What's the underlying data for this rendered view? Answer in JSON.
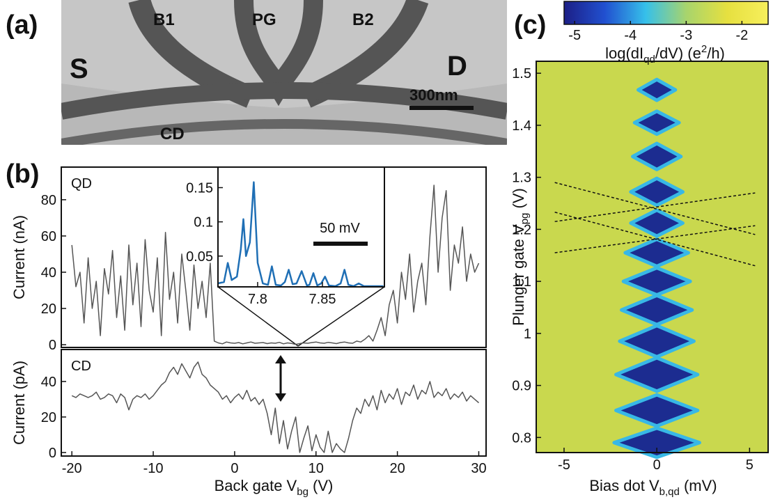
{
  "panel_a": {
    "label": "(a)",
    "source": "S",
    "drain": "D",
    "barrier_1": "B1",
    "plunger": "PG",
    "barrier_2": "B2",
    "charge_detector": "CD",
    "scale": "300nm"
  },
  "chart_data": [
    {
      "type": "line",
      "panel_label": "(b)",
      "annotation": "QD",
      "ylabel": [
        {
          "text": "Current (nA)"
        }
      ],
      "xlim": [
        -21.3,
        30.9
      ],
      "ylim": [
        -1.5,
        98
      ],
      "yticks": [
        0,
        20,
        40,
        60,
        80
      ],
      "x": [
        -20,
        -19.5,
        -19,
        -18.5,
        -18,
        -17.5,
        -17,
        -16.5,
        -16,
        -15.5,
        -15,
        -14.5,
        -14,
        -13.5,
        -13,
        -12.5,
        -12,
        -11.5,
        -11,
        -10.5,
        -10,
        -9.5,
        -9,
        -8.5,
        -8,
        -7.5,
        -7,
        -6.5,
        -6,
        -5.5,
        -5,
        -4.5,
        -4,
        -3.5,
        -3,
        -2.5,
        -2,
        -1.5,
        -1,
        -0.5,
        0,
        0.5,
        1,
        1.5,
        2,
        2.5,
        3,
        3.5,
        4,
        4.5,
        5,
        5.5,
        6,
        6.5,
        7,
        7.5,
        8,
        8.5,
        9,
        9.5,
        10,
        10.5,
        11,
        11.5,
        12,
        12.5,
        13,
        13.5,
        14,
        14.5,
        15,
        15.5,
        16,
        16.5,
        17,
        17.5,
        18,
        18.5,
        19,
        19.5,
        20,
        20.5,
        21,
        21.5,
        22,
        22.5,
        23,
        23.5,
        24,
        24.5,
        25,
        25.5,
        26,
        26.5,
        27,
        27.5,
        28,
        28.5,
        29,
        29.5,
        30
      ],
      "series": [
        {
          "color": "#555555",
          "values": [
            55,
            32,
            40,
            12,
            48,
            20,
            35,
            5,
            42,
            28,
            52,
            15,
            38,
            8,
            55,
            22,
            45,
            10,
            58,
            30,
            18,
            48,
            5,
            62,
            25,
            40,
            12,
            50,
            30,
            8,
            44,
            20,
            35,
            15,
            45,
            2,
            1,
            0.5,
            1.5,
            1,
            0.8,
            1.2,
            0.5,
            1,
            1.5,
            0.8,
            1,
            1.2,
            0.6,
            1,
            0.8,
            1.3,
            0.5,
            1,
            0.7,
            0.2,
            0.6,
            1,
            0.8,
            1.2,
            1.5,
            1,
            0.8,
            1.3,
            1,
            0.6,
            1.2,
            1.5,
            1,
            0.8,
            2,
            1.5,
            3,
            5,
            2,
            8,
            15,
            5,
            22,
            30,
            12,
            40,
            25,
            50,
            18,
            35,
            45,
            22,
            60,
            88,
            40,
            70,
            85,
            30,
            55,
            45,
            65,
            35,
            50,
            40,
            45
          ]
        }
      ]
    },
    {
      "type": "line",
      "annotation": "CD",
      "ylabel": [
        {
          "text": "Current (pA)"
        }
      ],
      "xlabel": [
        {
          "text": "Back gate V"
        },
        {
          "text": "bg",
          "shift": "sub"
        },
        {
          "text": " (V)"
        }
      ],
      "xlim": [
        -21.3,
        30.9
      ],
      "ylim": [
        -2,
        58
      ],
      "xticks": [
        -20,
        -10,
        0,
        10,
        20,
        30
      ],
      "yticks": [
        0,
        20,
        40
      ],
      "x": [
        -20,
        -19.5,
        -19,
        -18.5,
        -18,
        -17.5,
        -17,
        -16.5,
        -16,
        -15.5,
        -15,
        -14.5,
        -14,
        -13.5,
        -13,
        -12.5,
        -12,
        -11.5,
        -11,
        -10.5,
        -10,
        -9.5,
        -9,
        -8.5,
        -8,
        -7.5,
        -7,
        -6.5,
        -6,
        -5.5,
        -5,
        -4.5,
        -4,
        -3.5,
        -3,
        -2.5,
        -2,
        -1.5,
        -1,
        -0.5,
        0,
        0.5,
        1,
        1.5,
        2,
        2.5,
        3,
        3.5,
        4,
        4.5,
        5,
        5.5,
        6,
        6.5,
        7,
        7.5,
        8,
        8.5,
        9,
        9.5,
        10,
        10.5,
        11,
        11.5,
        12,
        12.5,
        13,
        13.5,
        14,
        14.5,
        15,
        15.5,
        16,
        16.5,
        17,
        17.5,
        18,
        18.5,
        19,
        19.5,
        20,
        20.5,
        21,
        21.5,
        22,
        22.5,
        23,
        23.5,
        24,
        24.5,
        25,
        25.5,
        26,
        26.5,
        27,
        27.5,
        28,
        28.5,
        29,
        29.5,
        30
      ],
      "series": [
        {
          "color": "#555555",
          "values": [
            32,
            31,
            33,
            32,
            31,
            32,
            34,
            30,
            31,
            33,
            32,
            28,
            33,
            31,
            24,
            30,
            32,
            31,
            33,
            30,
            32,
            35,
            38,
            40,
            45,
            48,
            44,
            50,
            46,
            42,
            48,
            51,
            44,
            42,
            38,
            36,
            34,
            30,
            32,
            28,
            31,
            33,
            30,
            35,
            29,
            31,
            27,
            30,
            22,
            10,
            25,
            5,
            18,
            2,
            12,
            20,
            0,
            8,
            15,
            1,
            10,
            3,
            0,
            12,
            0,
            5,
            2,
            0,
            8,
            18,
            25,
            22,
            30,
            26,
            32,
            24,
            35,
            28,
            33,
            30,
            36,
            27,
            34,
            32,
            38,
            30,
            35,
            33,
            40,
            31,
            34,
            32,
            36,
            30,
            33,
            31,
            34,
            29,
            32,
            30,
            28
          ]
        }
      ]
    },
    {
      "type": "line",
      "annotation": "50 mV",
      "xlim": [
        7.7694,
        7.8978
      ],
      "ylim": [
        0.005,
        0.18
      ],
      "xticks": [
        7.8,
        7.85
      ],
      "yticks": [
        0.05,
        0.1,
        0.15
      ],
      "x": [
        7.769,
        7.774,
        7.777,
        7.78,
        7.784,
        7.787,
        7.789,
        7.791,
        7.794,
        7.797,
        7.8,
        7.804,
        7.808,
        7.811,
        7.814,
        7.818,
        7.821,
        7.824,
        7.827,
        7.83,
        7.834,
        7.838,
        7.84,
        7.843,
        7.846,
        7.849,
        7.852,
        7.855,
        7.86,
        7.864,
        7.867,
        7.87,
        7.874,
        7.878,
        7.882,
        7.89,
        7.897
      ],
      "series": [
        {
          "color": "#1f6fb5",
          "values": [
            0.01,
            0.012,
            0.04,
            0.015,
            0.02,
            0.06,
            0.104,
            0.05,
            0.07,
            0.158,
            0.04,
            0.01,
            0.008,
            0.035,
            0.008,
            0.007,
            0.012,
            0.03,
            0.009,
            0.01,
            0.028,
            0.007,
            0.008,
            0.025,
            0.007,
            0.01,
            0.02,
            0.007,
            0.006,
            0.01,
            0.03,
            0.008,
            0.006,
            0.01,
            0.006,
            0.006,
            0.006
          ]
        }
      ]
    },
    {
      "type": "heatmap",
      "panel_label": "(c)",
      "xlabel": [
        {
          "text": "Bias dot V"
        },
        {
          "text": "b,qd",
          "shift": "sub"
        },
        {
          "text": " (mV)"
        }
      ],
      "ylabel": [
        {
          "text": "Plunger gate V"
        },
        {
          "text": "pg",
          "shift": "sub"
        },
        {
          "text": " (V)"
        }
      ],
      "xlim": [
        -6.5,
        6
      ],
      "ylim": [
        0.771,
        1.523
      ],
      "xticks": [
        -5,
        0,
        5
      ],
      "yticks": [
        0.8,
        0.9,
        1,
        1.1,
        1.2,
        1.3,
        1.4,
        1.5
      ],
      "background_color": "#c9d84e",
      "diamond_color": "#1c2c90",
      "edge_color": "#38b8e6",
      "diamonds": {
        "center": [
          0.79,
          0.852,
          0.921,
          0.985,
          1.045,
          1.1,
          1.155,
          1.212,
          1.272,
          1.34,
          1.405,
          1.468
        ],
        "half_bias": [
          2.3,
          2.2,
          2.2,
          2.0,
          1.9,
          1.8,
          1.7,
          1.4,
          1.4,
          1.3,
          1.2,
          1.0
        ],
        "half_gate": [
          0.028,
          0.03,
          0.032,
          0.03,
          0.028,
          0.026,
          0.026,
          0.025,
          0.026,
          0.025,
          0.022,
          0.02
        ]
      },
      "guide_lines": [
        [
          -5.5,
          1.29,
          5.3,
          1.19
        ],
        [
          -5.5,
          1.215,
          5.3,
          1.27
        ],
        [
          -5.5,
          1.233,
          5.3,
          1.13
        ],
        [
          -5.5,
          1.155,
          5.3,
          1.207
        ]
      ],
      "colorbar": {
        "label": [
          {
            "text": "log(dI"
          },
          {
            "text": "qd",
            "shift": "sub"
          },
          {
            "text": "/dV) (e"
          },
          {
            "text": "2",
            "shift": "sup"
          },
          {
            "text": "/h)"
          }
        ],
        "lim": [
          -5.19,
          -1.53
        ],
        "ticks": [
          -5,
          -4,
          -3,
          -2
        ],
        "colors": [
          "#1c1f86",
          "#2150d0",
          "#36c0ea",
          "#a8d46c",
          "#e6e040",
          "#f7ef5c"
        ]
      }
    }
  ]
}
